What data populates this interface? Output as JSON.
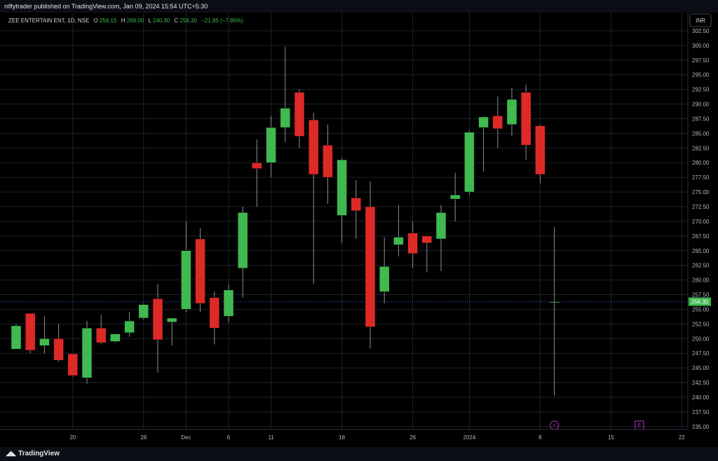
{
  "header": {
    "publisher": "niftytrader published on TradingView.com, Jan 09, 2024 15:54 UTC+5:30"
  },
  "footer": {
    "brand": "TradingView",
    "logo_icon": "tradingview-logo-icon"
  },
  "currency_button": "INR",
  "legend": {
    "symbol": "ZEE ENTERTAIN ENT, 1D, NSE",
    "o_label": "O",
    "o": "256.15",
    "h_label": "H",
    "h": "269.00",
    "l_label": "L",
    "l": "240.30",
    "c_label": "C",
    "c": "256.30",
    "change": "−21.85 (−7.86%)"
  },
  "colors": {
    "up": "#3fb950",
    "down": "#dd2a27",
    "grid": "#1e222d",
    "text": "#b2b5be",
    "price_line": "#2962ff",
    "marker": "#9c27b0"
  },
  "chart_data": {
    "type": "candlestick",
    "title": "ZEE ENTERTAIN ENT, 1D, NSE",
    "ylim": [
      234.5,
      305.6
    ],
    "y_ticks": [
      "235.00",
      "237.50",
      "240.00",
      "242.50",
      "245.00",
      "247.50",
      "250.00",
      "252.50",
      "255.00",
      "257.50",
      "260.00",
      "262.50",
      "265.00",
      "267.50",
      "270.00",
      "272.50",
      "275.00",
      "277.50",
      "280.00",
      "282.50",
      "285.00",
      "287.50",
      "290.00",
      "292.50",
      "295.00",
      "297.50",
      "300.00",
      "302.50"
    ],
    "x_ticks": [
      {
        "label": "20",
        "index": 4
      },
      {
        "label": "28",
        "index": 9
      },
      {
        "label": "Dec",
        "index": 12
      },
      {
        "label": "6",
        "index": 15
      },
      {
        "label": "11",
        "index": 18
      },
      {
        "label": "18",
        "index": 23
      },
      {
        "label": "26",
        "index": 28
      },
      {
        "label": "2024",
        "index": 32
      },
      {
        "label": "8",
        "index": 37
      },
      {
        "label": "15",
        "index": 42
      },
      {
        "label": "22",
        "index": 47
      }
    ],
    "last_price": 256.3,
    "last_price_label": "256.30",
    "markers": [
      {
        "label": "⚡",
        "index": 38,
        "name": "dividend-marker-icon"
      },
      {
        "label": "E",
        "index": 44,
        "name": "earnings-marker-icon"
      }
    ],
    "candles": [
      {
        "o": 248.2,
        "h": 252.5,
        "l": 248.2,
        "c": 252.2
      },
      {
        "o": 254.3,
        "h": 254.3,
        "l": 247.5,
        "c": 248.0
      },
      {
        "o": 248.8,
        "h": 253.8,
        "l": 247.5,
        "c": 250.0
      },
      {
        "o": 250.0,
        "h": 252.5,
        "l": 246.0,
        "c": 246.3
      },
      {
        "o": 247.4,
        "h": 247.4,
        "l": 243.5,
        "c": 243.7
      },
      {
        "o": 243.3,
        "h": 253.0,
        "l": 242.3,
        "c": 251.8
      },
      {
        "o": 251.8,
        "h": 254.0,
        "l": 249.0,
        "c": 249.3
      },
      {
        "o": 249.5,
        "h": 250.8,
        "l": 249.3,
        "c": 250.8
      },
      {
        "o": 251.0,
        "h": 254.5,
        "l": 250.3,
        "c": 253.0
      },
      {
        "o": 253.5,
        "h": 256.0,
        "l": 253.2,
        "c": 255.8
      },
      {
        "o": 256.8,
        "h": 259.3,
        "l": 244.2,
        "c": 249.8
      },
      {
        "o": 252.8,
        "h": 253.5,
        "l": 248.8,
        "c": 253.5
      },
      {
        "o": 255.0,
        "h": 270.0,
        "l": 254.5,
        "c": 265.0
      },
      {
        "o": 267.0,
        "h": 268.8,
        "l": 254.5,
        "c": 256.0
      },
      {
        "o": 257.0,
        "h": 258.0,
        "l": 249.0,
        "c": 251.8
      },
      {
        "o": 253.8,
        "h": 259.3,
        "l": 252.8,
        "c": 258.3
      },
      {
        "o": 262.0,
        "h": 272.5,
        "l": 257.0,
        "c": 271.5
      },
      {
        "o": 280.0,
        "h": 284.0,
        "l": 272.5,
        "c": 279.0
      },
      {
        "o": 280.0,
        "h": 288.0,
        "l": 277.5,
        "c": 286.0
      },
      {
        "o": 286.0,
        "h": 299.8,
        "l": 283.5,
        "c": 289.3
      },
      {
        "o": 292.0,
        "h": 292.5,
        "l": 282.5,
        "c": 284.5
      },
      {
        "o": 287.3,
        "h": 288.5,
        "l": 259.3,
        "c": 278.0
      },
      {
        "o": 283.0,
        "h": 286.5,
        "l": 273.0,
        "c": 277.5
      },
      {
        "o": 271.0,
        "h": 280.8,
        "l": 266.3,
        "c": 280.5
      },
      {
        "o": 274.0,
        "h": 277.0,
        "l": 267.0,
        "c": 271.8
      },
      {
        "o": 272.5,
        "h": 276.8,
        "l": 248.3,
        "c": 252.0
      },
      {
        "o": 258.0,
        "h": 267.3,
        "l": 256.0,
        "c": 262.3
      },
      {
        "o": 266.0,
        "h": 272.8,
        "l": 264.0,
        "c": 267.3
      },
      {
        "o": 268.0,
        "h": 270.0,
        "l": 262.0,
        "c": 264.5
      },
      {
        "o": 267.5,
        "h": 267.5,
        "l": 261.3,
        "c": 266.3
      },
      {
        "o": 267.0,
        "h": 272.8,
        "l": 261.5,
        "c": 271.5
      },
      {
        "o": 273.8,
        "h": 278.3,
        "l": 270.0,
        "c": 274.5
      },
      {
        "o": 275.0,
        "h": 285.5,
        "l": 274.5,
        "c": 285.2
      },
      {
        "o": 286.0,
        "h": 288.0,
        "l": 278.5,
        "c": 287.8
      },
      {
        "o": 288.0,
        "h": 291.3,
        "l": 282.5,
        "c": 285.8
      },
      {
        "o": 286.5,
        "h": 292.8,
        "l": 284.5,
        "c": 290.8
      },
      {
        "o": 292.0,
        "h": 293.3,
        "l": 280.5,
        "c": 283.0
      },
      {
        "o": 286.3,
        "h": 286.5,
        "l": 276.5,
        "c": 278.0
      },
      {
        "o": 256.15,
        "h": 269.0,
        "l": 240.3,
        "c": 256.3
      }
    ]
  }
}
